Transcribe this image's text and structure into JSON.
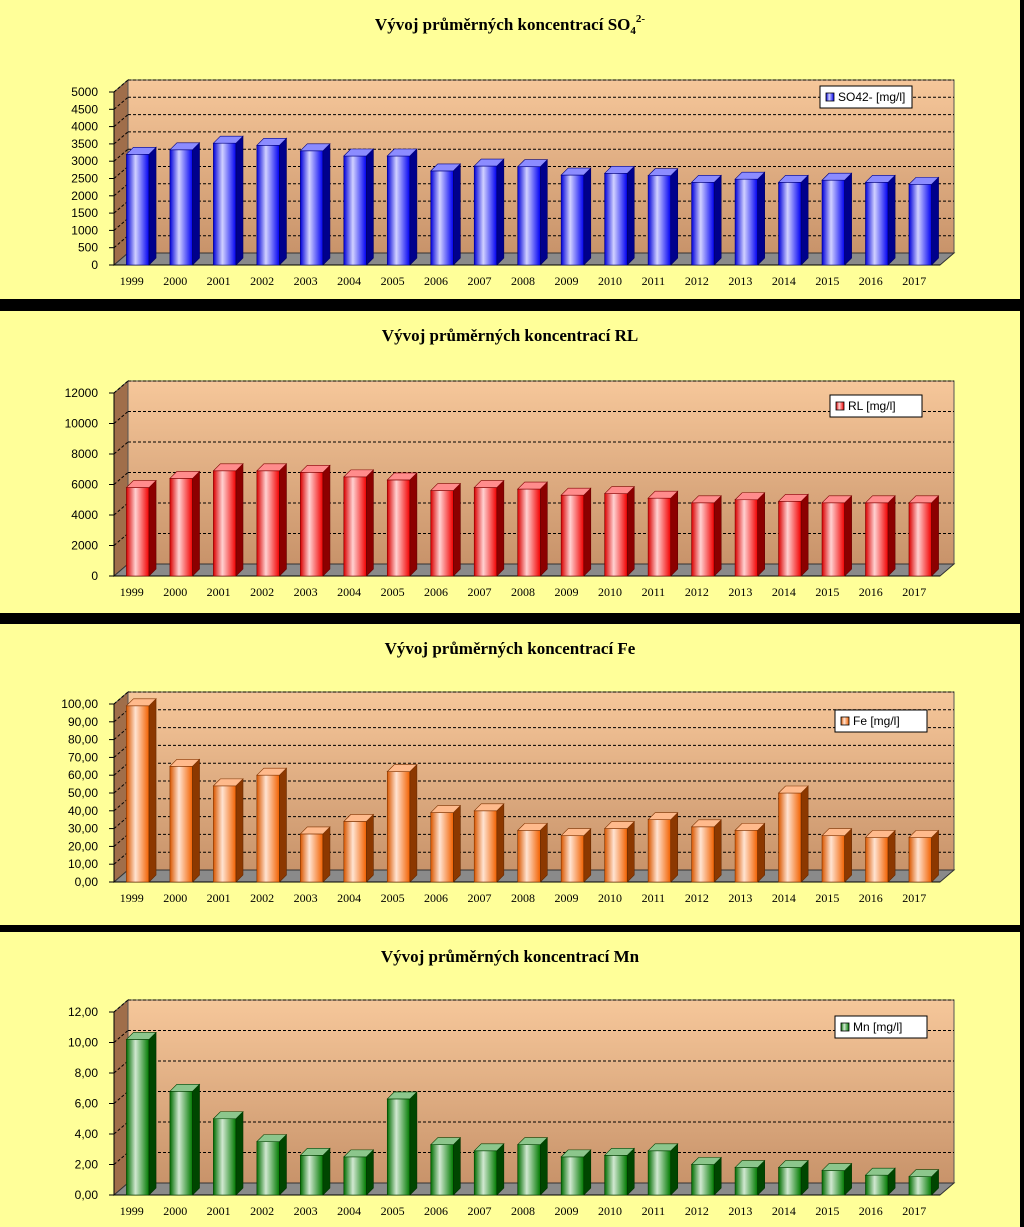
{
  "chart_data": [
    {
      "type": "bar",
      "title": "Vývoj průměrných koncentrací   SO",
      "title_sub": "4",
      "title_sup": "2-",
      "categories": [
        "1999",
        "2000",
        "2001",
        "2002",
        "2003",
        "2004",
        "2005",
        "2006",
        "2007",
        "2008",
        "2009",
        "2010",
        "2011",
        "2012",
        "2013",
        "2014",
        "2015",
        "2016",
        "2017"
      ],
      "series": [
        {
          "name": "SO42- [mg/l]",
          "values": [
            3200,
            3330,
            3520,
            3460,
            3300,
            3150,
            3150,
            2720,
            2860,
            2840,
            2600,
            2650,
            2580,
            2390,
            2480,
            2390,
            2450,
            2390,
            2330
          ]
        }
      ],
      "ylim": [
        0,
        5000
      ],
      "yticks": [
        "0",
        "500",
        "1000",
        "1500",
        "2000",
        "2500",
        "3000",
        "3500",
        "4000",
        "4500",
        "5000"
      ],
      "color": "#0000ff",
      "grid": true,
      "legend": "top-right"
    },
    {
      "type": "bar",
      "title": "Vývoj průměrných koncentrací   RL",
      "title_sub": "",
      "title_sup": "",
      "categories": [
        "1999",
        "2000",
        "2001",
        "2002",
        "2003",
        "2004",
        "2005",
        "2006",
        "2007",
        "2008",
        "2009",
        "2010",
        "2011",
        "2012",
        "2013",
        "2014",
        "2015",
        "2016",
        "2017"
      ],
      "series": [
        {
          "name": "RL [mg/l]",
          "values": [
            5800,
            6400,
            6900,
            6900,
            6800,
            6500,
            6300,
            5600,
            5800,
            5700,
            5300,
            5400,
            5100,
            4800,
            5000,
            4900,
            4800,
            4800,
            4800
          ]
        }
      ],
      "ylim": [
        0,
        12000
      ],
      "yticks": [
        "0",
        "2000",
        "4000",
        "6000",
        "8000",
        "10000",
        "12000"
      ],
      "color": "#ff0000",
      "grid": true,
      "legend": "top-right"
    },
    {
      "type": "bar",
      "title": "Vývoj průměrných koncentrací   Fe",
      "title_sub": "",
      "title_sup": "",
      "categories": [
        "1999",
        "2000",
        "2001",
        "2002",
        "2003",
        "2004",
        "2005",
        "2006",
        "2007",
        "2008",
        "2009",
        "2010",
        "2011",
        "2012",
        "2013",
        "2014",
        "2015",
        "2016",
        "2017"
      ],
      "series": [
        {
          "name": "Fe [mg/l]",
          "values": [
            99.0,
            65.0,
            54.0,
            60.0,
            27.0,
            34.0,
            62.0,
            39.0,
            40.0,
            29.0,
            26.0,
            30.0,
            35.0,
            31.0,
            29.0,
            50.0,
            26.0,
            25.0,
            25.0
          ]
        }
      ],
      "ylim": [
        0,
        100
      ],
      "yticks": [
        "0,00",
        "10,00",
        "20,00",
        "30,00",
        "40,00",
        "50,00",
        "60,00",
        "70,00",
        "80,00",
        "90,00",
        "100,00"
      ],
      "color": "#ff6600",
      "grid": true,
      "legend": "top-right"
    },
    {
      "type": "bar",
      "title": "Vývoj průměrných koncentrací   Mn",
      "title_sub": "",
      "title_sup": "",
      "categories": [
        "1999",
        "2000",
        "2001",
        "2002",
        "2003",
        "2004",
        "2005",
        "2006",
        "2007",
        "2008",
        "2009",
        "2010",
        "2011",
        "2012",
        "2013",
        "2014",
        "2015",
        "2016",
        "2017"
      ],
      "series": [
        {
          "name": "Mn [mg/l]",
          "values": [
            10.2,
            6.8,
            5.0,
            3.5,
            2.6,
            2.5,
            6.3,
            3.3,
            2.9,
            3.3,
            2.5,
            2.6,
            2.9,
            2.0,
            1.8,
            1.8,
            1.6,
            1.3,
            1.2
          ]
        }
      ],
      "ylim": [
        0,
        12
      ],
      "yticks": [
        "0,00",
        "2,00",
        "4,00",
        "6,00",
        "8,00",
        "10,00",
        "12,00"
      ],
      "color": "#008000",
      "grid": true,
      "legend": "top-right"
    }
  ]
}
